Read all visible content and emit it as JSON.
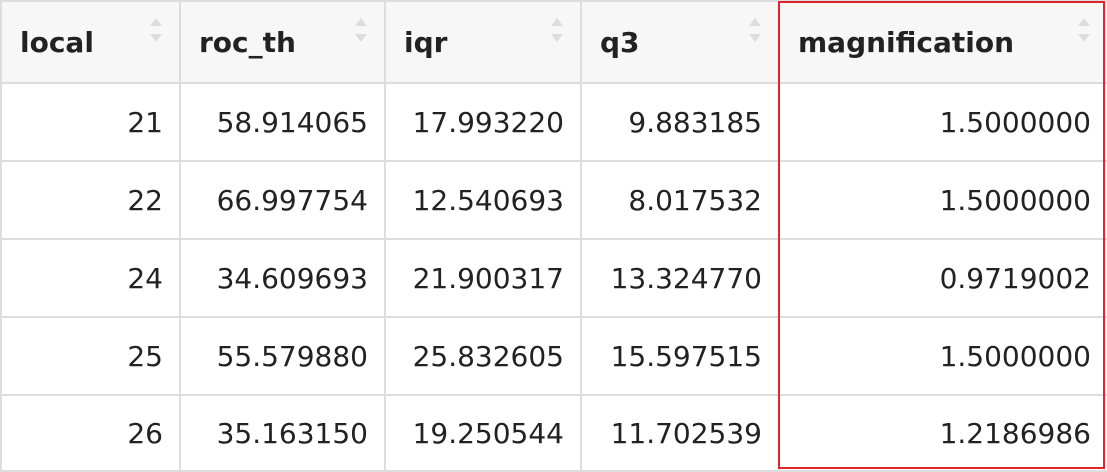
{
  "table": {
    "columns": [
      {
        "label": "local",
        "sort_icon": "sort-arrows-icon"
      },
      {
        "label": "roc_th",
        "sort_icon": "sort-arrows-icon"
      },
      {
        "label": "iqr",
        "sort_icon": "sort-arrows-icon"
      },
      {
        "label": "q3",
        "sort_icon": "sort-arrows-icon"
      },
      {
        "label": "magnification",
        "sort_icon": "sort-arrows-icon"
      }
    ],
    "rows": [
      [
        "21",
        "58.914065",
        "17.993220",
        "9.883185",
        "1.5000000"
      ],
      [
        "22",
        "66.997754",
        "12.540693",
        "8.017532",
        "1.5000000"
      ],
      [
        "24",
        "34.609693",
        "21.900317",
        "13.324770",
        "0.9719002"
      ],
      [
        "25",
        "55.579880",
        "25.832605",
        "15.597515",
        "1.5000000"
      ],
      [
        "26",
        "35.163150",
        "19.250544",
        "11.702539",
        "1.2186986"
      ]
    ],
    "highlighted_column": "magnification"
  },
  "colors": {
    "header_bg": "#f7f7f7",
    "border": "#dddddd",
    "highlight": "#e0262c",
    "text": "#222222"
  }
}
